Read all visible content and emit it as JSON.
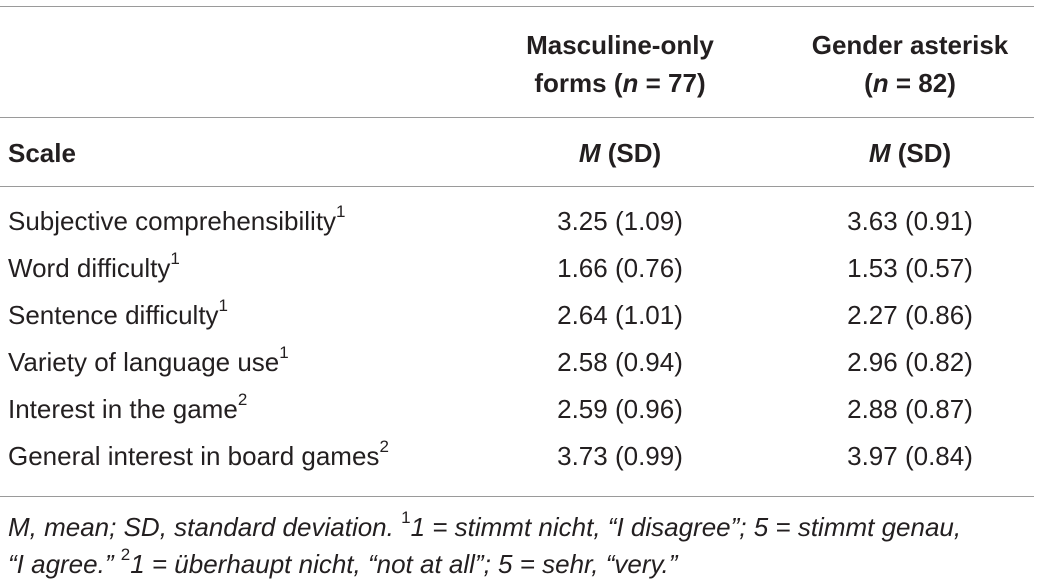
{
  "header": {
    "group1_line1": "Masculine-only",
    "group1_line2_pre": "forms (",
    "group1_line2_n": "n",
    "group1_line2_post": " = 77)",
    "group2_line1": "Gender asterisk",
    "group2_line2_pre": "(",
    "group2_line2_n": "n",
    "group2_line2_post": " = 82)",
    "scale_label": "Scale",
    "stat_m": "M",
    "stat_sd": " (SD)"
  },
  "rows": [
    {
      "label": "Subjective comprehensibility",
      "sup": "1",
      "masculine": "3.25 (1.09)",
      "asterisk": "3.63 (0.91)"
    },
    {
      "label": "Word difficulty",
      "sup": "1",
      "masculine": "1.66 (0.76)",
      "asterisk": "1.53 (0.57)"
    },
    {
      "label": "Sentence difficulty",
      "sup": "1",
      "masculine": "2.64 (1.01)",
      "asterisk": "2.27 (0.86)"
    },
    {
      "label": "Variety of language use",
      "sup": "1",
      "masculine": "2.58 (0.94)",
      "asterisk": "2.96 (0.82)"
    },
    {
      "label": "Interest in the game",
      "sup": "2",
      "masculine": "2.59 (0.96)",
      "asterisk": "2.88 (0.87)"
    },
    {
      "label": "General interest in board games",
      "sup": "2",
      "masculine": "3.73 (0.99)",
      "asterisk": "3.97 (0.84)"
    }
  ],
  "footnote": {
    "line1_a": "M, mean; SD, standard deviation. ",
    "sup1": "1",
    "line1_b": "1 = stimmt nicht, “I disagree”; 5 = stimmt genau,",
    "line2_a": "“I agree.” ",
    "sup2": "2",
    "line2_b": "1 = überhaupt nicht, “not at all”; 5 = sehr, “very.”"
  }
}
